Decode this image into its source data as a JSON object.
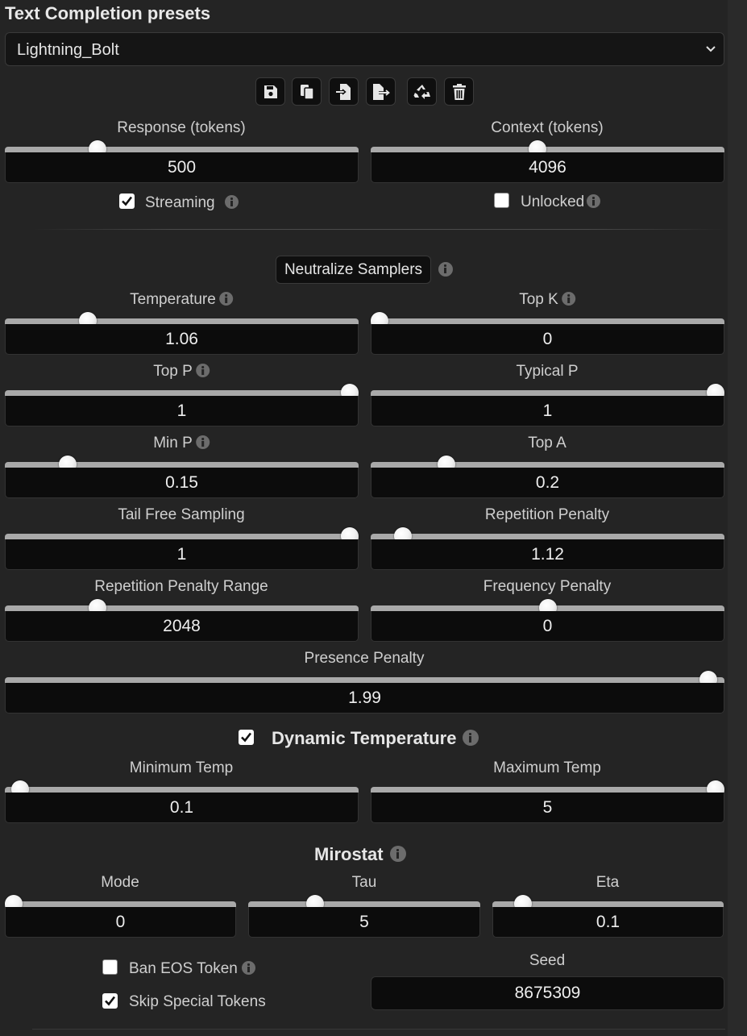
{
  "header": {
    "title": "Text Completion presets"
  },
  "preset": {
    "selected": "Lightning_Bolt"
  },
  "toolbar": {
    "buttons": [
      {
        "name": "save-icon"
      },
      {
        "name": "copy-icon"
      },
      {
        "name": "import-icon"
      },
      {
        "name": "export-icon"
      },
      {
        "name": "restore-icon"
      },
      {
        "name": "delete-icon"
      }
    ]
  },
  "response": {
    "label": "Response (tokens)",
    "value": "500",
    "level": 0.25
  },
  "context": {
    "label": "Context (tokens)",
    "value": "4096",
    "level": 0.47
  },
  "streaming": {
    "label": "Streaming",
    "checked": true
  },
  "unlocked": {
    "label": "Unlocked",
    "checked": false
  },
  "neutralize": {
    "label": "Neutralize Samplers"
  },
  "samplers": {
    "temperature": {
      "label": "Temperature",
      "value": "1.06",
      "level": 0.22
    },
    "top_k": {
      "label": "Top K",
      "value": "0",
      "level": 0.0
    },
    "top_p": {
      "label": "Top P",
      "value": "1",
      "level": 1.0
    },
    "typical_p": {
      "label": "Typical P",
      "value": "1",
      "level": 1.0
    },
    "min_p": {
      "label": "Min P",
      "value": "0.15",
      "level": 0.16
    },
    "top_a": {
      "label": "Top A",
      "value": "0.2",
      "level": 0.2
    },
    "tfs": {
      "label": "Tail Free Sampling",
      "value": "1",
      "level": 1.0
    },
    "rep_pen": {
      "label": "Repetition Penalty",
      "value": "1.12",
      "level": 0.07
    },
    "rep_pen_range": {
      "label": "Repetition Penalty Range",
      "value": "2048",
      "level": 0.25
    },
    "freq_pen": {
      "label": "Frequency Penalty",
      "value": "0",
      "level": 0.5
    },
    "presence_pen": {
      "label": "Presence Penalty",
      "value": "1.99",
      "level": 0.99
    }
  },
  "dynamic_temp": {
    "title": "Dynamic Temperature",
    "checked": true,
    "min": {
      "label": "Minimum Temp",
      "value": "0.1",
      "level": 0.02
    },
    "max": {
      "label": "Maximum Temp",
      "value": "5",
      "level": 1.0
    }
  },
  "mirostat": {
    "title": "Mirostat",
    "mode": {
      "label": "Mode",
      "value": "0",
      "level": 0.0
    },
    "tau": {
      "label": "Tau",
      "value": "5",
      "level": 0.27
    },
    "eta": {
      "label": "Eta",
      "value": "0.1",
      "level": 0.1
    }
  },
  "options": {
    "ban_eos": {
      "label": "Ban EOS Token",
      "checked": false
    },
    "skip_special": {
      "label": "Skip Special Tokens",
      "checked": true
    }
  },
  "seed": {
    "label": "Seed",
    "value": "8675309"
  }
}
